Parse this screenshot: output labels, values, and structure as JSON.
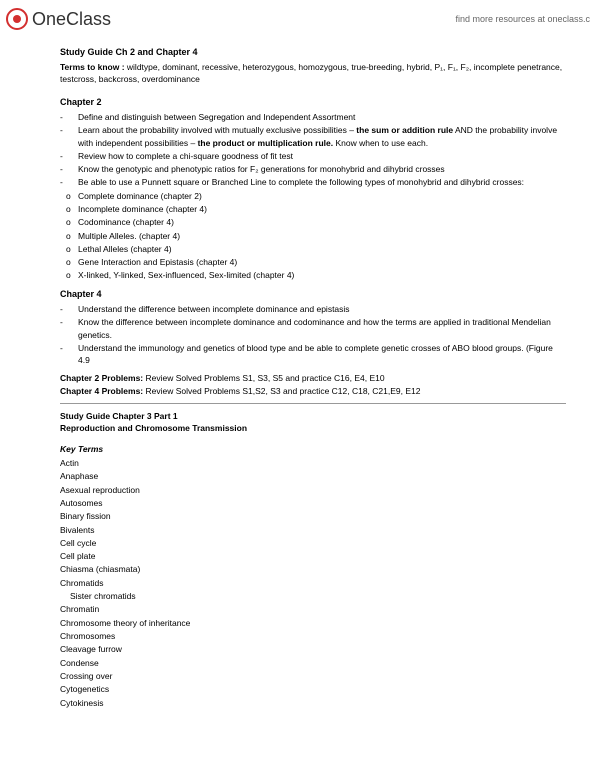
{
  "header": {
    "logo_text": "OneClass",
    "tagline": "find more resources at oneclass.c"
  },
  "doc": {
    "title": "Study Guide Ch 2 and Chapter 4",
    "terms_label": "Terms to know :",
    "terms_text": " wildtype, dominant, recessive, heterozygous, homozygous, true-breeding, hybrid, P₁, F₁, F₂, incomplete penetrance, testcross, backcross, overdominance",
    "ch2_head": "Chapter 2",
    "ch2_items": [
      "Define and distinguish between Segregation and Independent Assortment",
      "Learn about the probability involved with mutually exclusive possibilities – ",
      "Review how to complete a chi-square goodness of fit test",
      "Know the genotypic and phenotypic ratios for F₂ generations for monohybrid and dihybrid crosses",
      "Be able to use a Punnett square or Branched Line to complete the following types of monohybrid and dihybrid crosses:"
    ],
    "ch2_rule1": "the sum or addition rule",
    "ch2_rule_mid": " AND the probability involve",
    "ch2_indep": "with independent possibilities – ",
    "ch2_rule2": "the product or multiplication rule.",
    "ch2_know": "  Know when to use each.",
    "ch2_sub": [
      "Complete dominance (chapter 2)",
      "Incomplete dominance (chapter 4)",
      "Codominance (chapter 4)",
      "Multiple Alleles. (chapter 4)",
      "Lethal Alleles (chapter 4)",
      "Gene Interaction and Epistasis (chapter 4)",
      "X-linked, Y-linked, Sex-influenced, Sex-limited (chapter 4)"
    ],
    "ch4_head": "Chapter 4",
    "ch4_items": [
      "Understand the difference between incomplete dominance and epistasis",
      "Know the difference between incomplete dominance and codominance and how the terms are applied in traditional Mendelian",
      "Understand the immunology and genetics of blood type and be able to complete genetic crosses of ABO blood groups. (Figure 4.9"
    ],
    "ch4_genetics": "genetics.",
    "prob2_label": "Chapter 2 Problems:",
    "prob2_text": "  Review Solved Problems S1, S3, S5 and practice C16, E4, E10",
    "prob4_label": "Chapter 4 Problems:",
    "prob4_text": "  Review Solved Problems S1,S2, S3 and practice C12, C18, C21,E9, E12",
    "guide3_title": "Study Guide Chapter 3 Part 1",
    "guide3_sub": "Reproduction and Chromosome Transmission",
    "keyterms_head": "Key Terms",
    "terms_list": [
      "Actin",
      "Anaphase",
      "Asexual reproduction",
      "Autosomes",
      "Binary fission",
      "Bivalents",
      "Cell cycle",
      "Cell plate",
      "Chiasma (chiasmata)",
      "Chromatids",
      "Chromatin",
      "Chromosome theory of    inheritance",
      "Chromosomes",
      "Cleavage furrow",
      "Condense",
      "Crossing over",
      "Cytogenetics",
      "Cytokinesis"
    ],
    "sister": "Sister chromatids"
  }
}
